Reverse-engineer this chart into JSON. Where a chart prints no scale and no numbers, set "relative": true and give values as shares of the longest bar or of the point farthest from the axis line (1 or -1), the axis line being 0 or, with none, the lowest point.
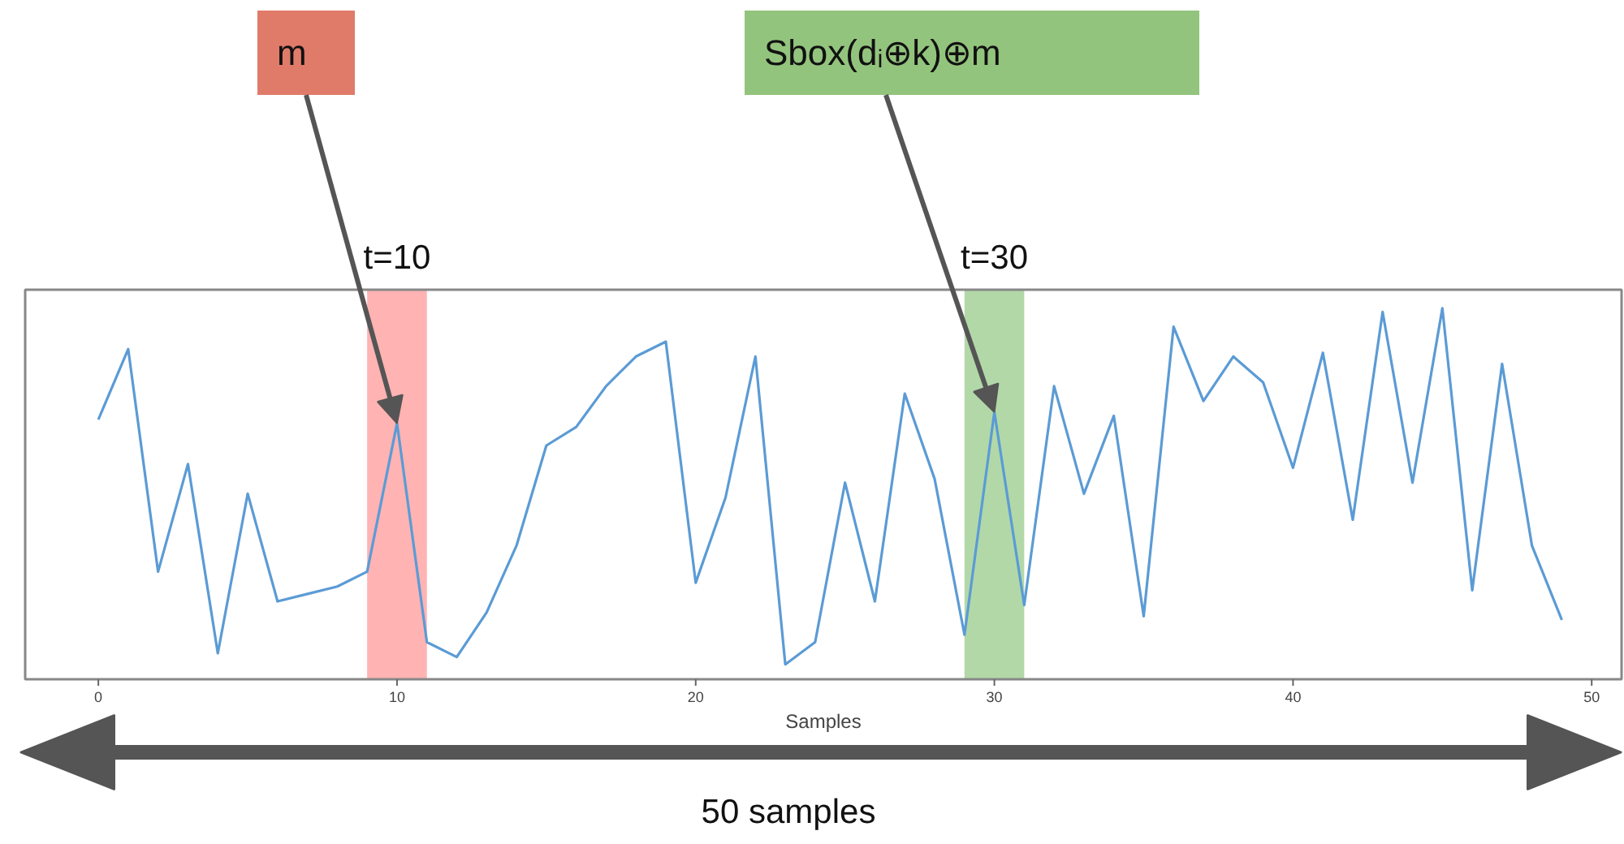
{
  "chart_data": {
    "type": "line",
    "relative": true,
    "xlabel": "Samples",
    "tick_labels": "x",
    "xlim": [
      -2.45,
      51
    ],
    "xticks": [
      0,
      10,
      20,
      30,
      40,
      50
    ],
    "x": [
      0,
      1,
      2,
      3,
      4,
      5,
      6,
      7,
      8,
      9,
      10,
      11,
      12,
      13,
      14,
      15,
      16,
      17,
      18,
      19,
      20,
      21,
      22,
      23,
      24,
      25,
      26,
      27,
      28,
      29,
      30,
      31,
      32,
      33,
      34,
      35,
      36,
      37,
      38,
      39,
      40,
      41,
      42,
      43,
      44,
      45,
      46,
      47,
      48,
      49
    ],
    "series": [
      {
        "color": "#5b9bd5",
        "values": [
          0.7,
          0.89,
          0.29,
          0.58,
          0.07,
          0.5,
          0.21,
          0.23,
          0.25,
          0.29,
          0.69,
          0.1,
          0.06,
          0.18,
          0.36,
          0.63,
          0.68,
          0.79,
          0.87,
          0.91,
          0.26,
          0.49,
          0.87,
          0.04,
          0.1,
          0.53,
          0.21,
          0.77,
          0.54,
          0.12,
          0.72,
          0.2,
          0.79,
          0.5,
          0.71,
          0.17,
          0.95,
          0.75,
          0.87,
          0.8,
          0.57,
          0.88,
          0.43,
          0.99,
          0.53,
          1,
          0.24,
          0.85,
          0.36,
          0.16
        ]
      }
    ],
    "bands": [
      {
        "axis": "x",
        "from": 9,
        "to": 11,
        "label": "t=10",
        "color": "#ffb3b3"
      },
      {
        "axis": "x",
        "from": 29,
        "to": 31,
        "label": "t=30",
        "color": "#b2d8a8"
      }
    ],
    "annotations": [
      {
        "text": "m",
        "x": 10,
        "y": 0.69
      },
      {
        "text": "Sbox(dᵢ⊕k)⊕m",
        "x": 30,
        "y": 0.72
      },
      "50 samples"
    ]
  }
}
